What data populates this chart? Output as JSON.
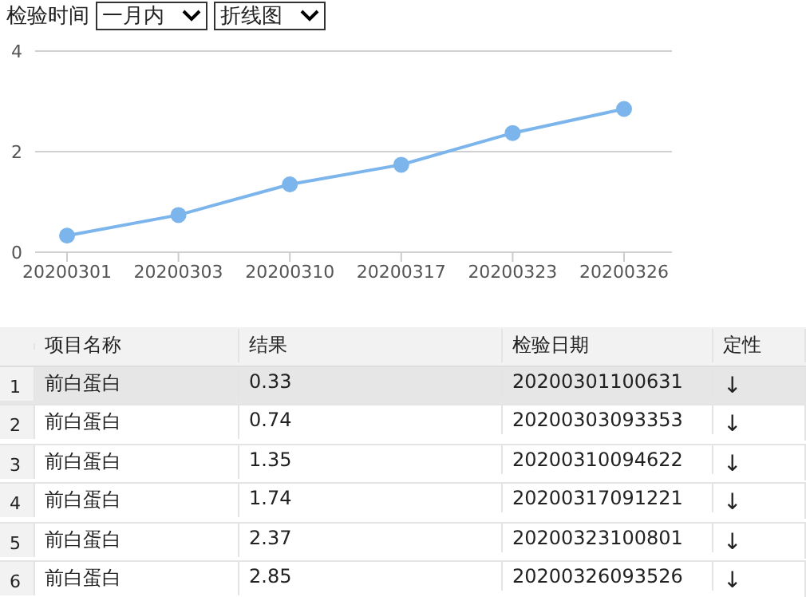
{
  "chart_data": {
    "type": "line",
    "categories": [
      "20200301",
      "20200303",
      "20200310",
      "20200317",
      "20200323",
      "20200326"
    ],
    "series": [
      {
        "color": "#7cb5ec",
        "values": [
          0.33,
          0.74,
          1.35,
          1.74,
          2.37,
          2.85
        ]
      }
    ],
    "ylim": [
      0,
      4
    ],
    "yticks": [
      0,
      2,
      4
    ],
    "grid": "y",
    "marker": "circle",
    "line_style": "solid",
    "value_labels": [
      "0.33",
      "0.74",
      "1.35",
      "1.74",
      "2.37",
      "2.85"
    ],
    "annotations": [
      "检验时间",
      "一月内",
      "折线图",
      "项目名称",
      "结果",
      "检验日期",
      "定性",
      "1",
      "前白蛋白",
      "20200301100631",
      "↓",
      "2",
      "前白蛋白",
      "20200303093353",
      "↓",
      "3",
      "前白蛋白",
      "20200310094622",
      "↓",
      "4",
      "前白蛋白",
      "20200317091221",
      "↓",
      "5",
      "前白蛋白",
      "20200323100801",
      "↓",
      "6",
      "前白蛋白",
      "20200326093526",
      "↓"
    ]
  }
}
